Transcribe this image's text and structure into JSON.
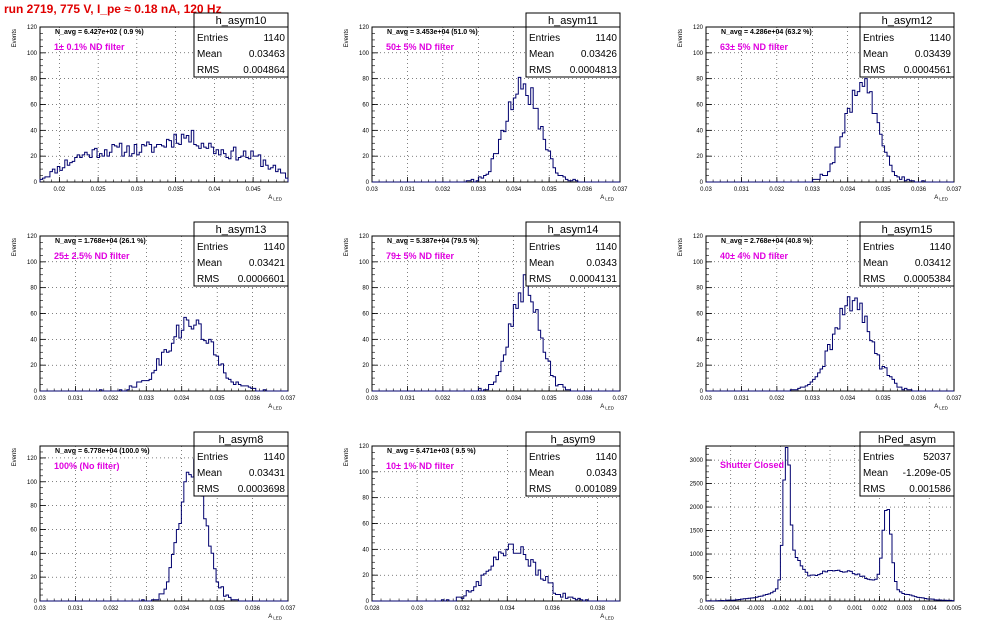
{
  "run_title": "run 2719,   775 V, I_pe ≈ 0.18 nA, 120 Hz",
  "colors": {
    "hist": "#00006e",
    "annotation": "#e000e0",
    "title": "#e00000",
    "grid": "#000000"
  },
  "chart_data": [
    {
      "type": "histogram",
      "name": "h_asym10",
      "entries": "1140",
      "mean": "0.03463",
      "rms": "0.004864",
      "navg": "N_avg = 6.427e+02 ( 0.9 %)",
      "filter": "1± 0.1% ND filter",
      "ylabel": "Events",
      "xlabel": "A_LED",
      "xlim": [
        0.0175,
        0.0495
      ],
      "ylim": [
        0,
        120
      ],
      "xticks": [
        0.02,
        0.025,
        0.03,
        0.035,
        0.04,
        0.045
      ],
      "xticklabels": [
        "0.02",
        "0.025",
        "0.03",
        "0.035",
        "0.04",
        "0.045"
      ],
      "yticks": [
        0,
        20,
        40,
        60,
        80,
        100,
        120
      ],
      "shape": [
        [
          0.029,
          0.008,
          4,
          23
        ],
        [
          0.041,
          0.006,
          4,
          20
        ],
        [
          0.035,
          0.011,
          3,
          2
        ]
      ],
      "nbins": 100,
      "seed": 11
    },
    {
      "type": "histogram",
      "name": "h_asym11",
      "entries": "1140",
      "mean": "0.03426",
      "rms": "0.0004813",
      "navg": "N_avg = 3.453e+04 (51.0 %)",
      "filter": "50± 5% ND filter",
      "ylabel": "Events",
      "xlabel": "A_LED",
      "xlim": [
        0.03,
        0.037
      ],
      "ylim": [
        0,
        120
      ],
      "xticks": [
        0.03,
        0.031,
        0.032,
        0.033,
        0.034,
        0.035,
        0.036,
        0.037
      ],
      "xticklabels": [
        "0.03",
        "0.031",
        "0.032",
        "0.033",
        "0.034",
        "0.035",
        "0.036",
        "0.037"
      ],
      "yticks": [
        0,
        20,
        40,
        60,
        80,
        100,
        120
      ],
      "shape": [
        [
          0.03426,
          0.00048,
          2,
          74
        ]
      ],
      "nbins": 100,
      "seed": 21
    },
    {
      "type": "histogram",
      "name": "h_asym12",
      "entries": "1140",
      "mean": "0.03439",
      "rms": "0.0004561",
      "navg": "N_avg = 4.286e+04 (63.2 %)",
      "filter": "63± 5% ND filter",
      "ylabel": "Events",
      "xlabel": "A_LED",
      "xlim": [
        0.03,
        0.037
      ],
      "ylim": [
        0,
        120
      ],
      "xticks": [
        0.03,
        0.031,
        0.032,
        0.033,
        0.034,
        0.035,
        0.036,
        0.037
      ],
      "xticklabels": [
        "0.03",
        "0.031",
        "0.032",
        "0.033",
        "0.034",
        "0.035",
        "0.036",
        "0.037"
      ],
      "yticks": [
        0,
        20,
        40,
        60,
        80,
        100,
        120
      ],
      "shape": [
        [
          0.03439,
          0.00046,
          2,
          74
        ]
      ],
      "nbins": 100,
      "seed": 31
    },
    {
      "type": "histogram",
      "name": "h_asym13",
      "entries": "1140",
      "mean": "0.03421",
      "rms": "0.0006601",
      "navg": "N_avg = 1.768e+04 (26.1 %)",
      "filter": "25± 2.5% ND filter",
      "ylabel": "Events",
      "xlabel": "A_LED",
      "xlim": [
        0.03,
        0.037
      ],
      "ylim": [
        0,
        120
      ],
      "xticks": [
        0.03,
        0.031,
        0.032,
        0.033,
        0.034,
        0.035,
        0.036,
        0.037
      ],
      "xticklabels": [
        "0.03",
        "0.031",
        "0.032",
        "0.033",
        "0.034",
        "0.035",
        "0.036",
        "0.037"
      ],
      "yticks": [
        0,
        20,
        40,
        60,
        80,
        100,
        120
      ],
      "shape": [
        [
          0.03421,
          0.00066,
          2,
          52
        ]
      ],
      "nbins": 100,
      "seed": 41
    },
    {
      "type": "histogram",
      "name": "h_asym14",
      "entries": "1140",
      "mean": "0.0343",
      "rms": "0.0004131",
      "navg": "N_avg = 5.387e+04 (79.5 %)",
      "filter": "79± 5% ND filter",
      "ylabel": "Events",
      "xlabel": "A_LED",
      "xlim": [
        0.03,
        0.037
      ],
      "ylim": [
        0,
        120
      ],
      "xticks": [
        0.03,
        0.031,
        0.032,
        0.033,
        0.034,
        0.035,
        0.036,
        0.037
      ],
      "xticklabels": [
        "0.03",
        "0.031",
        "0.032",
        "0.033",
        "0.034",
        "0.035",
        "0.036",
        "0.037"
      ],
      "yticks": [
        0,
        20,
        40,
        60,
        80,
        100,
        120
      ],
      "shape": [
        [
          0.0343,
          0.00041,
          2,
          80
        ]
      ],
      "nbins": 100,
      "seed": 51
    },
    {
      "type": "histogram",
      "name": "h_asym15",
      "entries": "1140",
      "mean": "0.03412",
      "rms": "0.0005384",
      "navg": "N_avg = 2.768e+04 (40.8 %)",
      "filter": "40± 4% ND filter",
      "ylabel": "Events",
      "xlabel": "A_LED",
      "xlim": [
        0.03,
        0.037
      ],
      "ylim": [
        0,
        120
      ],
      "xticks": [
        0.03,
        0.031,
        0.032,
        0.033,
        0.034,
        0.035,
        0.036,
        0.037
      ],
      "xticklabels": [
        "0.03",
        "0.031",
        "0.032",
        "0.033",
        "0.034",
        "0.035",
        "0.036",
        "0.037"
      ],
      "yticks": [
        0,
        20,
        40,
        60,
        80,
        100,
        120
      ],
      "shape": [
        [
          0.03412,
          0.00054,
          2,
          68
        ]
      ],
      "nbins": 100,
      "seed": 61
    },
    {
      "type": "histogram",
      "name": "h_asym8",
      "entries": "1140",
      "mean": "0.03431",
      "rms": "0.0003698",
      "navg": "N_avg = 6.778e+04 (100.0 %)",
      "filter": "100% (No filter)",
      "ylabel": "Events",
      "xlabel": "A_LED",
      "xlim": [
        0.03,
        0.037
      ],
      "ylim": [
        0,
        130
      ],
      "xticks": [
        0.03,
        0.031,
        0.032,
        0.033,
        0.034,
        0.035,
        0.036,
        0.037
      ],
      "xticklabels": [
        "0.03",
        "0.031",
        "0.032",
        "0.033",
        "0.034",
        "0.035",
        "0.036",
        "0.037"
      ],
      "yticks": [
        0,
        20,
        40,
        60,
        80,
        100,
        120
      ],
      "shape": [
        [
          0.03431,
          0.00037,
          2,
          112
        ]
      ],
      "nbins": 100,
      "seed": 71
    },
    {
      "type": "histogram",
      "name": "h_asym9",
      "entries": "1140",
      "mean": "0.0343",
      "rms": "0.001089",
      "navg": "N_avg = 6.471e+03 ( 9.5 %)",
      "filter": "10± 1% ND filter",
      "ylabel": "Events",
      "xlabel": "A_LED",
      "xlim": [
        0.028,
        0.039
      ],
      "ylim": [
        0,
        120
      ],
      "xticks": [
        0.028,
        0.03,
        0.032,
        0.034,
        0.036,
        0.038
      ],
      "xticklabels": [
        "0.028",
        "0.03",
        "0.032",
        "0.034",
        "0.036",
        "0.038"
      ],
      "yticks": [
        0,
        20,
        40,
        60,
        80,
        100,
        120
      ],
      "shape": [
        [
          0.0343,
          0.00105,
          2,
          40
        ]
      ],
      "nbins": 100,
      "seed": 81
    },
    {
      "type": "histogram",
      "name": "hPed_asym",
      "entries": "52037",
      "mean": "-1.209e-05",
      "rms": "0.001586",
      "navg": "",
      "filter": "Shutter Closed",
      "ylabel": "",
      "xlabel": "",
      "xlim": [
        -0.005,
        0.005
      ],
      "ylim": [
        0,
        3300
      ],
      "xticks": [
        -0.005,
        -0.004,
        -0.003,
        -0.002,
        -0.001,
        0,
        0.001,
        0.002,
        0.003,
        0.004,
        0.005
      ],
      "xticklabels": [
        "-0.005",
        "-0.004",
        "-0.003",
        "-0.002",
        "-0.001",
        "0",
        "0.001",
        "0.002",
        "0.003",
        "0.004",
        "0.005"
      ],
      "yticks": [
        0,
        500,
        1000,
        1500,
        2000,
        2500,
        3000
      ],
      "shape": [
        [
          -0.00175,
          0.00012,
          2,
          2900
        ],
        [
          -0.0015,
          0.0003,
          2,
          600
        ],
        [
          0.0023,
          0.00017,
          2,
          1700
        ],
        [
          0.0003,
          0.0016,
          2,
          650
        ]
      ],
      "nbins": 100,
      "seed": 91
    }
  ]
}
